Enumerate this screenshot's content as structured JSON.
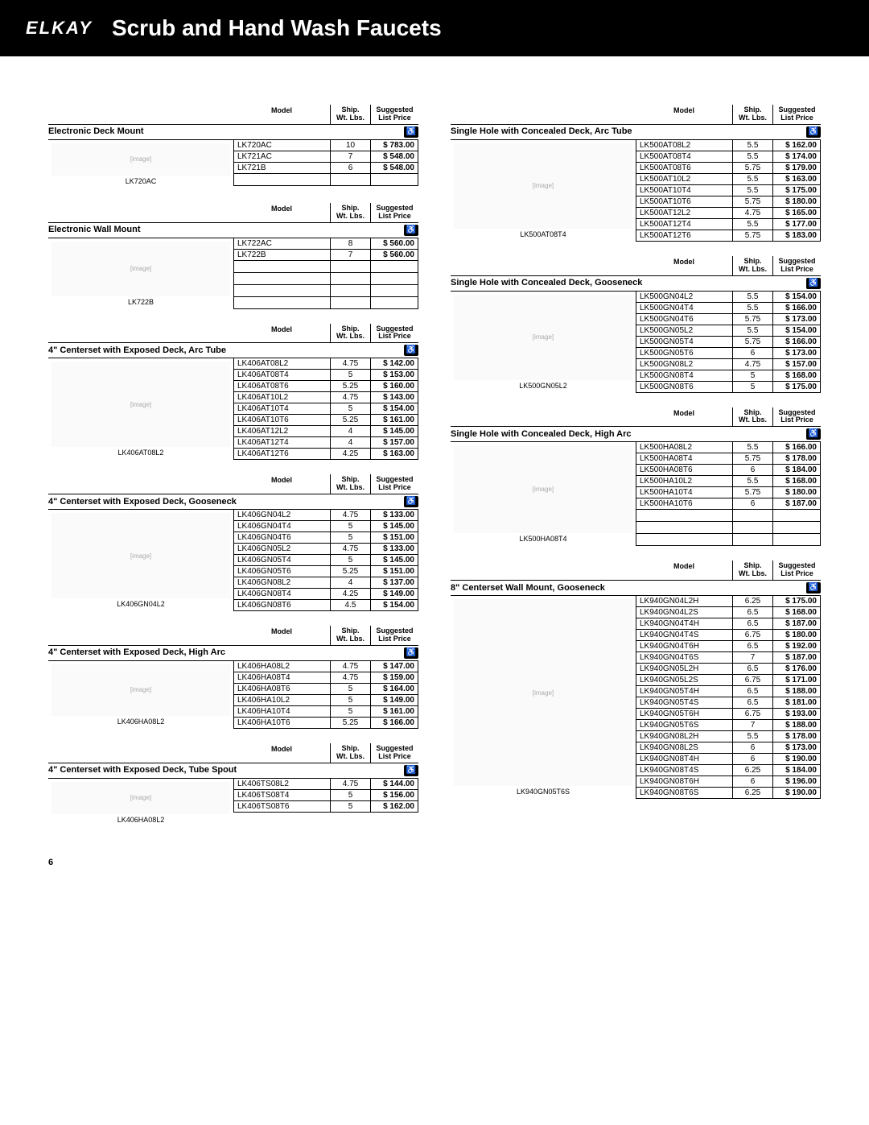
{
  "logo": "ELKAY",
  "page_title": "Scrub and Hand Wash Faucets",
  "page_number": "6",
  "th_model": "Model",
  "th_ship1": "Ship.",
  "th_ship2": "Wt. Lbs.",
  "th_sug1": "Suggested",
  "th_sug2": "List Price",
  "ada_icon": "♿",
  "left_sections": [
    {
      "title": "Electronic Deck Mount",
      "img_label": "LK720AC",
      "rows": [
        {
          "m": "LK720AC",
          "w": "10",
          "p": "$ 783.00"
        },
        {
          "m": "LK721AC",
          "w": "7",
          "p": "$ 548.00"
        },
        {
          "m": "LK721B",
          "w": "6",
          "p": "$ 548.00"
        },
        {
          "m": "",
          "w": "",
          "p": ""
        }
      ]
    },
    {
      "title": "Electronic Wall Mount",
      "img_label": "LK722B",
      "rows": [
        {
          "m": "LK722AC",
          "w": "8",
          "p": "$ 560.00"
        },
        {
          "m": "LK722B",
          "w": "7",
          "p": "$ 560.00"
        },
        {
          "m": "",
          "w": "",
          "p": ""
        },
        {
          "m": "",
          "w": "",
          "p": ""
        },
        {
          "m": "",
          "w": "",
          "p": ""
        },
        {
          "m": "",
          "w": "",
          "p": ""
        }
      ]
    },
    {
      "title": "4\" Centerset with Exposed Deck, Arc Tube",
      "img_label": "LK406AT08L2",
      "rows": [
        {
          "m": "LK406AT08L2",
          "w": "4.75",
          "p": "$ 142.00"
        },
        {
          "m": "LK406AT08T4",
          "w": "5",
          "p": "$ 153.00"
        },
        {
          "m": "LK406AT08T6",
          "w": "5.25",
          "p": "$ 160.00"
        },
        {
          "m": "LK406AT10L2",
          "w": "4.75",
          "p": "$ 143.00"
        },
        {
          "m": "LK406AT10T4",
          "w": "5",
          "p": "$ 154.00"
        },
        {
          "m": "LK406AT10T6",
          "w": "5.25",
          "p": "$ 161.00"
        },
        {
          "m": "LK406AT12L2",
          "w": "4",
          "p": "$ 145.00"
        },
        {
          "m": "LK406AT12T4",
          "w": "4",
          "p": "$ 157.00"
        },
        {
          "m": "LK406AT12T6",
          "w": "4.25",
          "p": "$ 163.00"
        }
      ]
    },
    {
      "title": "4\" Centerset with Exposed Deck, Gooseneck",
      "img_label": "LK406GN04L2",
      "rows": [
        {
          "m": "LK406GN04L2",
          "w": "4.75",
          "p": "$ 133.00"
        },
        {
          "m": "LK406GN04T4",
          "w": "5",
          "p": "$ 145.00"
        },
        {
          "m": "LK406GN04T6",
          "w": "5",
          "p": "$ 151.00"
        },
        {
          "m": "LK406GN05L2",
          "w": "4.75",
          "p": "$ 133.00"
        },
        {
          "m": "LK406GN05T4",
          "w": "5",
          "p": "$ 145.00"
        },
        {
          "m": "LK406GN05T6",
          "w": "5.25",
          "p": "$ 151.00"
        },
        {
          "m": "LK406GN08L2",
          "w": "4",
          "p": "$ 137.00"
        },
        {
          "m": "LK406GN08T4",
          "w": "4.25",
          "p": "$ 149.00"
        },
        {
          "m": "LK406GN08T6",
          "w": "4.5",
          "p": "$ 154.00"
        }
      ]
    },
    {
      "title": "4\" Centerset with Exposed Deck, High Arc",
      "img_label": "LK406HA08L2",
      "rows": [
        {
          "m": "LK406HA08L2",
          "w": "4.75",
          "p": "$ 147.00"
        },
        {
          "m": "LK406HA08T4",
          "w": "4.75",
          "p": "$ 159.00"
        },
        {
          "m": "LK406HA08T6",
          "w": "5",
          "p": "$ 164.00"
        },
        {
          "m": "LK406HA10L2",
          "w": "5",
          "p": "$ 149.00"
        },
        {
          "m": "LK406HA10T4",
          "w": "5",
          "p": "$ 161.00"
        },
        {
          "m": "LK406HA10T6",
          "w": "5.25",
          "p": "$ 166.00"
        }
      ]
    },
    {
      "title": "4\" Centerset with Exposed Deck, Tube Spout",
      "img_label": "LK406HA08L2",
      "rows": [
        {
          "m": "LK406TS08L2",
          "w": "4.75",
          "p": "$ 144.00"
        },
        {
          "m": "LK406TS08T4",
          "w": "5",
          "p": "$ 156.00"
        },
        {
          "m": "LK406TS08T6",
          "w": "5",
          "p": "$ 162.00"
        }
      ]
    }
  ],
  "right_sections": [
    {
      "title": "Single Hole with Concealed Deck, Arc Tube",
      "img_label": "LK500AT08T4",
      "rows": [
        {
          "m": "LK500AT08L2",
          "w": "5.5",
          "p": "$ 162.00"
        },
        {
          "m": "LK500AT08T4",
          "w": "5.5",
          "p": "$ 174.00"
        },
        {
          "m": "LK500AT08T6",
          "w": "5.75",
          "p": "$ 179.00"
        },
        {
          "m": "LK500AT10L2",
          "w": "5.5",
          "p": "$ 163.00"
        },
        {
          "m": "LK500AT10T4",
          "w": "5.5",
          "p": "$ 175.00"
        },
        {
          "m": "LK500AT10T6",
          "w": "5.75",
          "p": "$ 180.00"
        },
        {
          "m": "LK500AT12L2",
          "w": "4.75",
          "p": "$ 165.00"
        },
        {
          "m": "LK500AT12T4",
          "w": "5.5",
          "p": "$ 177.00"
        },
        {
          "m": "LK500AT12T6",
          "w": "5.75",
          "p": "$ 183.00"
        }
      ]
    },
    {
      "title": "Single Hole with Concealed Deck, Gooseneck",
      "img_label": "LK500GN05L2",
      "rows": [
        {
          "m": "LK500GN04L2",
          "w": "5.5",
          "p": "$ 154.00"
        },
        {
          "m": "LK500GN04T4",
          "w": "5.5",
          "p": "$ 166.00"
        },
        {
          "m": "LK500GN04T6",
          "w": "5.75",
          "p": "$ 173.00"
        },
        {
          "m": "LK500GN05L2",
          "w": "5.5",
          "p": "$ 154.00"
        },
        {
          "m": "LK500GN05T4",
          "w": "5.75",
          "p": "$ 166.00"
        },
        {
          "m": "LK500GN05T6",
          "w": "6",
          "p": "$ 173.00"
        },
        {
          "m": "LK500GN08L2",
          "w": "4.75",
          "p": "$ 157.00"
        },
        {
          "m": "LK500GN08T4",
          "w": "5",
          "p": "$ 168.00"
        },
        {
          "m": "LK500GN08T6",
          "w": "5",
          "p": "$ 175.00"
        }
      ]
    },
    {
      "title": "Single Hole with Concealed Deck, High Arc",
      "img_label": "LK500HA08T4",
      "rows": [
        {
          "m": "LK500HA08L2",
          "w": "5.5",
          "p": "$ 166.00"
        },
        {
          "m": "LK500HA08T4",
          "w": "5.75",
          "p": "$ 178.00"
        },
        {
          "m": "LK500HA08T6",
          "w": "6",
          "p": "$ 184.00"
        },
        {
          "m": "LK500HA10L2",
          "w": "5.5",
          "p": "$ 168.00"
        },
        {
          "m": "LK500HA10T4",
          "w": "5.75",
          "p": "$ 180.00"
        },
        {
          "m": "LK500HA10T6",
          "w": "6",
          "p": "$ 187.00"
        },
        {
          "m": "",
          "w": "",
          "p": ""
        },
        {
          "m": "",
          "w": "",
          "p": ""
        },
        {
          "m": "",
          "w": "",
          "p": ""
        }
      ]
    },
    {
      "title": "8\" Centerset Wall Mount, Gooseneck",
      "img_label": "LK940GN05T6S",
      "rows": [
        {
          "m": "LK940GN04L2H",
          "w": "6.25",
          "p": "$ 175.00"
        },
        {
          "m": "LK940GN04L2S",
          "w": "6.5",
          "p": "$ 168.00"
        },
        {
          "m": "LK940GN04T4H",
          "w": "6.5",
          "p": "$ 187.00"
        },
        {
          "m": "LK940GN04T4S",
          "w": "6.75",
          "p": "$ 180.00"
        },
        {
          "m": "LK940GN04T6H",
          "w": "6.5",
          "p": "$ 192.00"
        },
        {
          "m": "LK940GN04T6S",
          "w": "7",
          "p": "$ 187.00"
        },
        {
          "m": "LK940GN05L2H",
          "w": "6.5",
          "p": "$ 176.00"
        },
        {
          "m": "LK940GN05L2S",
          "w": "6.75",
          "p": "$ 171.00"
        },
        {
          "m": "LK940GN05T4H",
          "w": "6.5",
          "p": "$ 188.00"
        },
        {
          "m": "LK940GN05T4S",
          "w": "6.5",
          "p": "$ 181.00"
        },
        {
          "m": "LK940GN05T6H",
          "w": "6.75",
          "p": "$ 193.00"
        },
        {
          "m": "LK940GN05T6S",
          "w": "7",
          "p": "$ 188.00"
        },
        {
          "m": "LK940GN08L2H",
          "w": "5.5",
          "p": "$ 178.00"
        },
        {
          "m": "LK940GN08L2S",
          "w": "6",
          "p": "$ 173.00"
        },
        {
          "m": "LK940GN08T4H",
          "w": "6",
          "p": "$ 190.00"
        },
        {
          "m": "LK940GN08T4S",
          "w": "6.25",
          "p": "$ 184.00"
        },
        {
          "m": "LK940GN08T6H",
          "w": "6",
          "p": "$ 196.00"
        },
        {
          "m": "LK940GN08T6S",
          "w": "6.25",
          "p": "$ 190.00"
        }
      ]
    }
  ]
}
